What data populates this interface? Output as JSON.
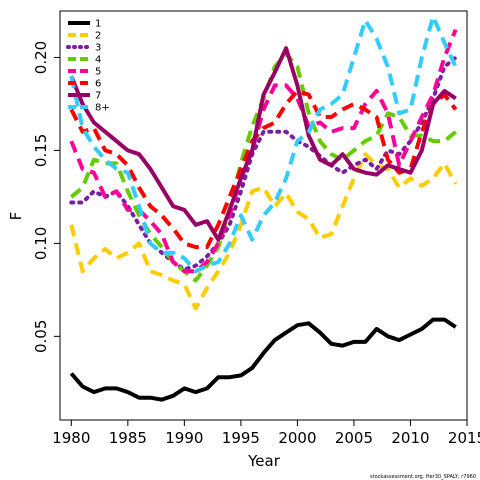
{
  "chart_data": {
    "type": "line",
    "title": "",
    "xlabel": "Year",
    "ylabel": "F",
    "xlim": [
      1979,
      2015
    ],
    "ylim": [
      0.005,
      0.225
    ],
    "x_ticks": [
      1980,
      1985,
      1990,
      1995,
      2000,
      2005,
      2010,
      2015
    ],
    "y_ticks": [
      0.05,
      0.1,
      0.15,
      0.2
    ],
    "y_tick_labels": [
      "0.05",
      "0.10",
      "0.15",
      "0.20"
    ],
    "grid": false,
    "legend_position": "top-left",
    "credit": "stockassessment.org, Her30_SPALY, r7960",
    "x": [
      1980,
      1981,
      1982,
      1983,
      1984,
      1985,
      1986,
      1987,
      1988,
      1989,
      1990,
      1991,
      1992,
      1993,
      1994,
      1995,
      1996,
      1997,
      1998,
      1999,
      2000,
      2001,
      2002,
      2003,
      2004,
      2005,
      2006,
      2007,
      2008,
      2009,
      2010,
      2011,
      2012,
      2013,
      2014
    ],
    "series": [
      {
        "name": "1",
        "color": "#000000",
        "dash": "solid",
        "values": [
          0.03,
          0.023,
          0.02,
          0.022,
          0.022,
          0.02,
          0.017,
          0.017,
          0.016,
          0.018,
          0.022,
          0.02,
          0.022,
          0.028,
          0.028,
          0.029,
          0.033,
          0.041,
          0.048,
          0.052,
          0.056,
          0.057,
          0.052,
          0.046,
          0.045,
          0.047,
          0.047,
          0.054,
          0.05,
          0.048,
          0.051,
          0.054,
          0.059,
          0.059,
          0.055
        ]
      },
      {
        "name": "2",
        "color": "#FFCC00",
        "dash": "dashed",
        "values": [
          0.11,
          0.085,
          0.092,
          0.097,
          0.092,
          0.095,
          0.1,
          0.085,
          0.083,
          0.08,
          0.078,
          0.065,
          0.076,
          0.085,
          0.095,
          0.11,
          0.128,
          0.13,
          0.12,
          0.127,
          0.117,
          0.113,
          0.103,
          0.105,
          0.12,
          0.135,
          0.148,
          0.142,
          0.14,
          0.13,
          0.135,
          0.131,
          0.135,
          0.143,
          0.132
        ]
      },
      {
        "name": "3",
        "color": "#7B1FA2",
        "dash": "dotted",
        "values": [
          0.122,
          0.122,
          0.128,
          0.125,
          0.128,
          0.12,
          0.11,
          0.1,
          0.095,
          0.09,
          0.086,
          0.088,
          0.093,
          0.1,
          0.11,
          0.128,
          0.148,
          0.16,
          0.16,
          0.16,
          0.155,
          0.152,
          0.147,
          0.142,
          0.138,
          0.142,
          0.145,
          0.14,
          0.15,
          0.148,
          0.155,
          0.165,
          0.178,
          0.195,
          0.2
        ]
      },
      {
        "name": "4",
        "color": "#66CC00",
        "dash": "dashed",
        "values": [
          0.125,
          0.13,
          0.145,
          0.143,
          0.143,
          0.128,
          0.115,
          0.105,
          0.098,
          0.09,
          0.085,
          0.08,
          0.088,
          0.098,
          0.118,
          0.143,
          0.163,
          0.178,
          0.195,
          0.202,
          0.195,
          0.17,
          0.155,
          0.148,
          0.145,
          0.15,
          0.155,
          0.158,
          0.17,
          0.168,
          0.158,
          0.158,
          0.155,
          0.155,
          0.16
        ]
      },
      {
        "name": "5",
        "color": "#FF0099",
        "dash": "dashed",
        "values": [
          0.155,
          0.14,
          0.138,
          0.125,
          0.128,
          0.118,
          0.118,
          0.112,
          0.105,
          0.09,
          0.085,
          0.085,
          0.09,
          0.1,
          0.115,
          0.135,
          0.15,
          0.172,
          0.185,
          0.185,
          0.178,
          0.163,
          0.165,
          0.16,
          0.162,
          0.162,
          0.175,
          0.182,
          0.17,
          0.142,
          0.155,
          0.168,
          0.18,
          0.2,
          0.215
        ]
      },
      {
        "name": "6",
        "color": "#FF0000",
        "dash": "dashed",
        "values": [
          0.172,
          0.16,
          0.162,
          0.15,
          0.148,
          0.142,
          0.13,
          0.12,
          0.115,
          0.108,
          0.1,
          0.098,
          0.098,
          0.11,
          0.125,
          0.14,
          0.155,
          0.162,
          0.165,
          0.175,
          0.182,
          0.18,
          0.168,
          0.168,
          0.172,
          0.175,
          0.172,
          0.168,
          0.145,
          0.138,
          0.14,
          0.16,
          0.175,
          0.18,
          0.172
        ]
      },
      {
        "name": "7",
        "color": "#990066",
        "dash": "solid",
        "values": [
          0.19,
          0.175,
          0.165,
          0.16,
          0.155,
          0.15,
          0.148,
          0.14,
          0.13,
          0.12,
          0.118,
          0.11,
          0.112,
          0.102,
          0.118,
          0.135,
          0.15,
          0.18,
          0.192,
          0.205,
          0.185,
          0.158,
          0.145,
          0.142,
          0.148,
          0.14,
          0.138,
          0.137,
          0.142,
          0.14,
          0.138,
          0.15,
          0.175,
          0.182,
          0.178
        ]
      },
      {
        "name": "8+",
        "color": "#33CCFF",
        "dash": "dashed",
        "values": [
          0.19,
          0.162,
          0.152,
          0.145,
          0.14,
          0.138,
          0.12,
          0.1,
          0.095,
          0.095,
          0.092,
          0.085,
          0.088,
          0.09,
          0.1,
          0.115,
          0.102,
          0.115,
          0.122,
          0.135,
          0.155,
          0.16,
          0.172,
          0.175,
          0.18,
          0.2,
          0.22,
          0.21,
          0.195,
          0.17,
          0.172,
          0.2,
          0.222,
          0.208,
          0.195
        ]
      }
    ]
  }
}
